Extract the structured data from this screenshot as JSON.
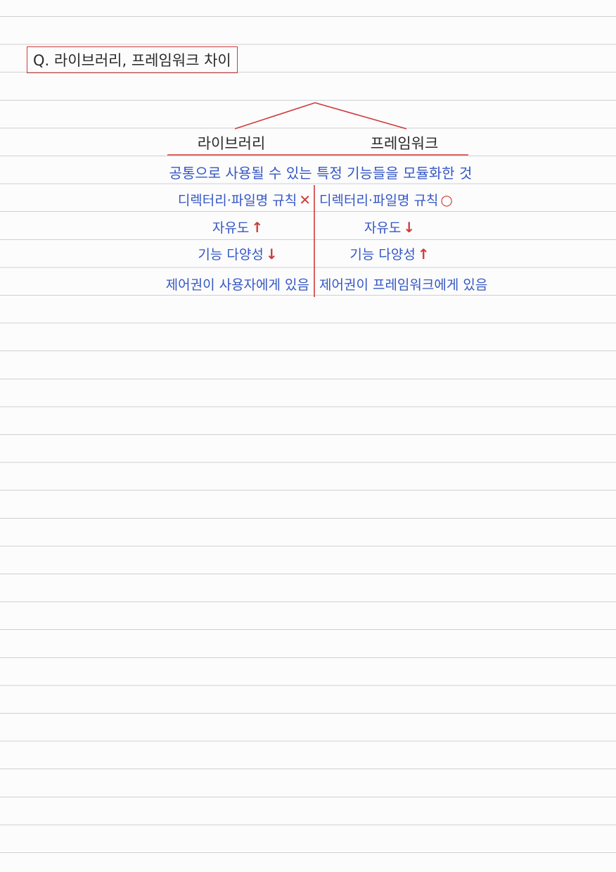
{
  "question": "Q. 라이브러리, 프레임워크 차이",
  "columns": {
    "left": "라이브러리",
    "right": "프레임워크"
  },
  "common": "공통으로 사용될 수 있는 특정 기능들을 모듈화한 것",
  "rows": [
    {
      "left_text": "디렉터리·파일명 규칙",
      "left_mark": "✕",
      "right_text": "디렉터리·파일명 규칙",
      "right_mark": "○"
    },
    {
      "left_text": "자유도",
      "left_mark": "↑",
      "right_text": "자유도",
      "right_mark": "↓"
    },
    {
      "left_text": "기능 다양성",
      "left_mark": "↓",
      "right_text": "기능 다양성",
      "right_mark": "↑"
    },
    {
      "left_text": "제어권이 사용자에게 있음",
      "left_mark": "",
      "right_text": "제어권이 프레임워크에게 있음",
      "right_mark": ""
    }
  ],
  "colors": {
    "ink_black": "#2a2a2a",
    "ink_blue": "#3557c4",
    "ink_red": "#d03a3a",
    "ruled_line": "#cfd0d4",
    "paper": "#fcfcfd"
  }
}
